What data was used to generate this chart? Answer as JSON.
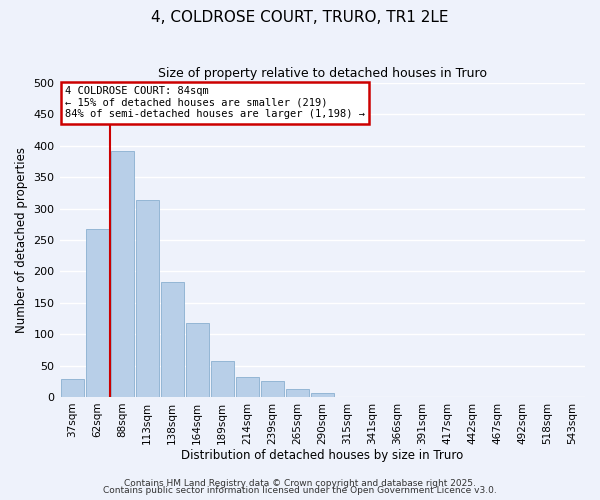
{
  "title": "4, COLDROSE COURT, TRURO, TR1 2LE",
  "subtitle": "Size of property relative to detached houses in Truro",
  "xlabel": "Distribution of detached houses by size in Truro",
  "ylabel": "Number of detached properties",
  "bar_color": "#b8cfe8",
  "bar_edge_color": "#8aafd0",
  "background_color": "#eef2fb",
  "grid_color": "#ffffff",
  "bin_labels": [
    "37sqm",
    "62sqm",
    "88sqm",
    "113sqm",
    "138sqm",
    "164sqm",
    "189sqm",
    "214sqm",
    "239sqm",
    "265sqm",
    "290sqm",
    "315sqm",
    "341sqm",
    "366sqm",
    "391sqm",
    "417sqm",
    "442sqm",
    "467sqm",
    "492sqm",
    "518sqm",
    "543sqm"
  ],
  "bar_heights": [
    28,
    267,
    392,
    313,
    183,
    118,
    58,
    32,
    25,
    13,
    6,
    0,
    0,
    0,
    0,
    0,
    0,
    0,
    0,
    0,
    0
  ],
  "ylim": [
    0,
    500
  ],
  "yticks": [
    0,
    50,
    100,
    150,
    200,
    250,
    300,
    350,
    400,
    450,
    500
  ],
  "vline_color": "#cc0000",
  "vline_x_index": 2,
  "annotation_title": "4 COLDROSE COURT: 84sqm",
  "annotation_line1": "← 15% of detached houses are smaller (219)",
  "annotation_line2": "84% of semi-detached houses are larger (1,198) →",
  "annotation_box_color": "#ffffff",
  "annotation_box_edge": "#cc0000",
  "footer_line1": "Contains HM Land Registry data © Crown copyright and database right 2025.",
  "footer_line2": "Contains public sector information licensed under the Open Government Licence v3.0.",
  "title_fontsize": 11,
  "subtitle_fontsize": 9,
  "footer_fontsize": 6.5
}
